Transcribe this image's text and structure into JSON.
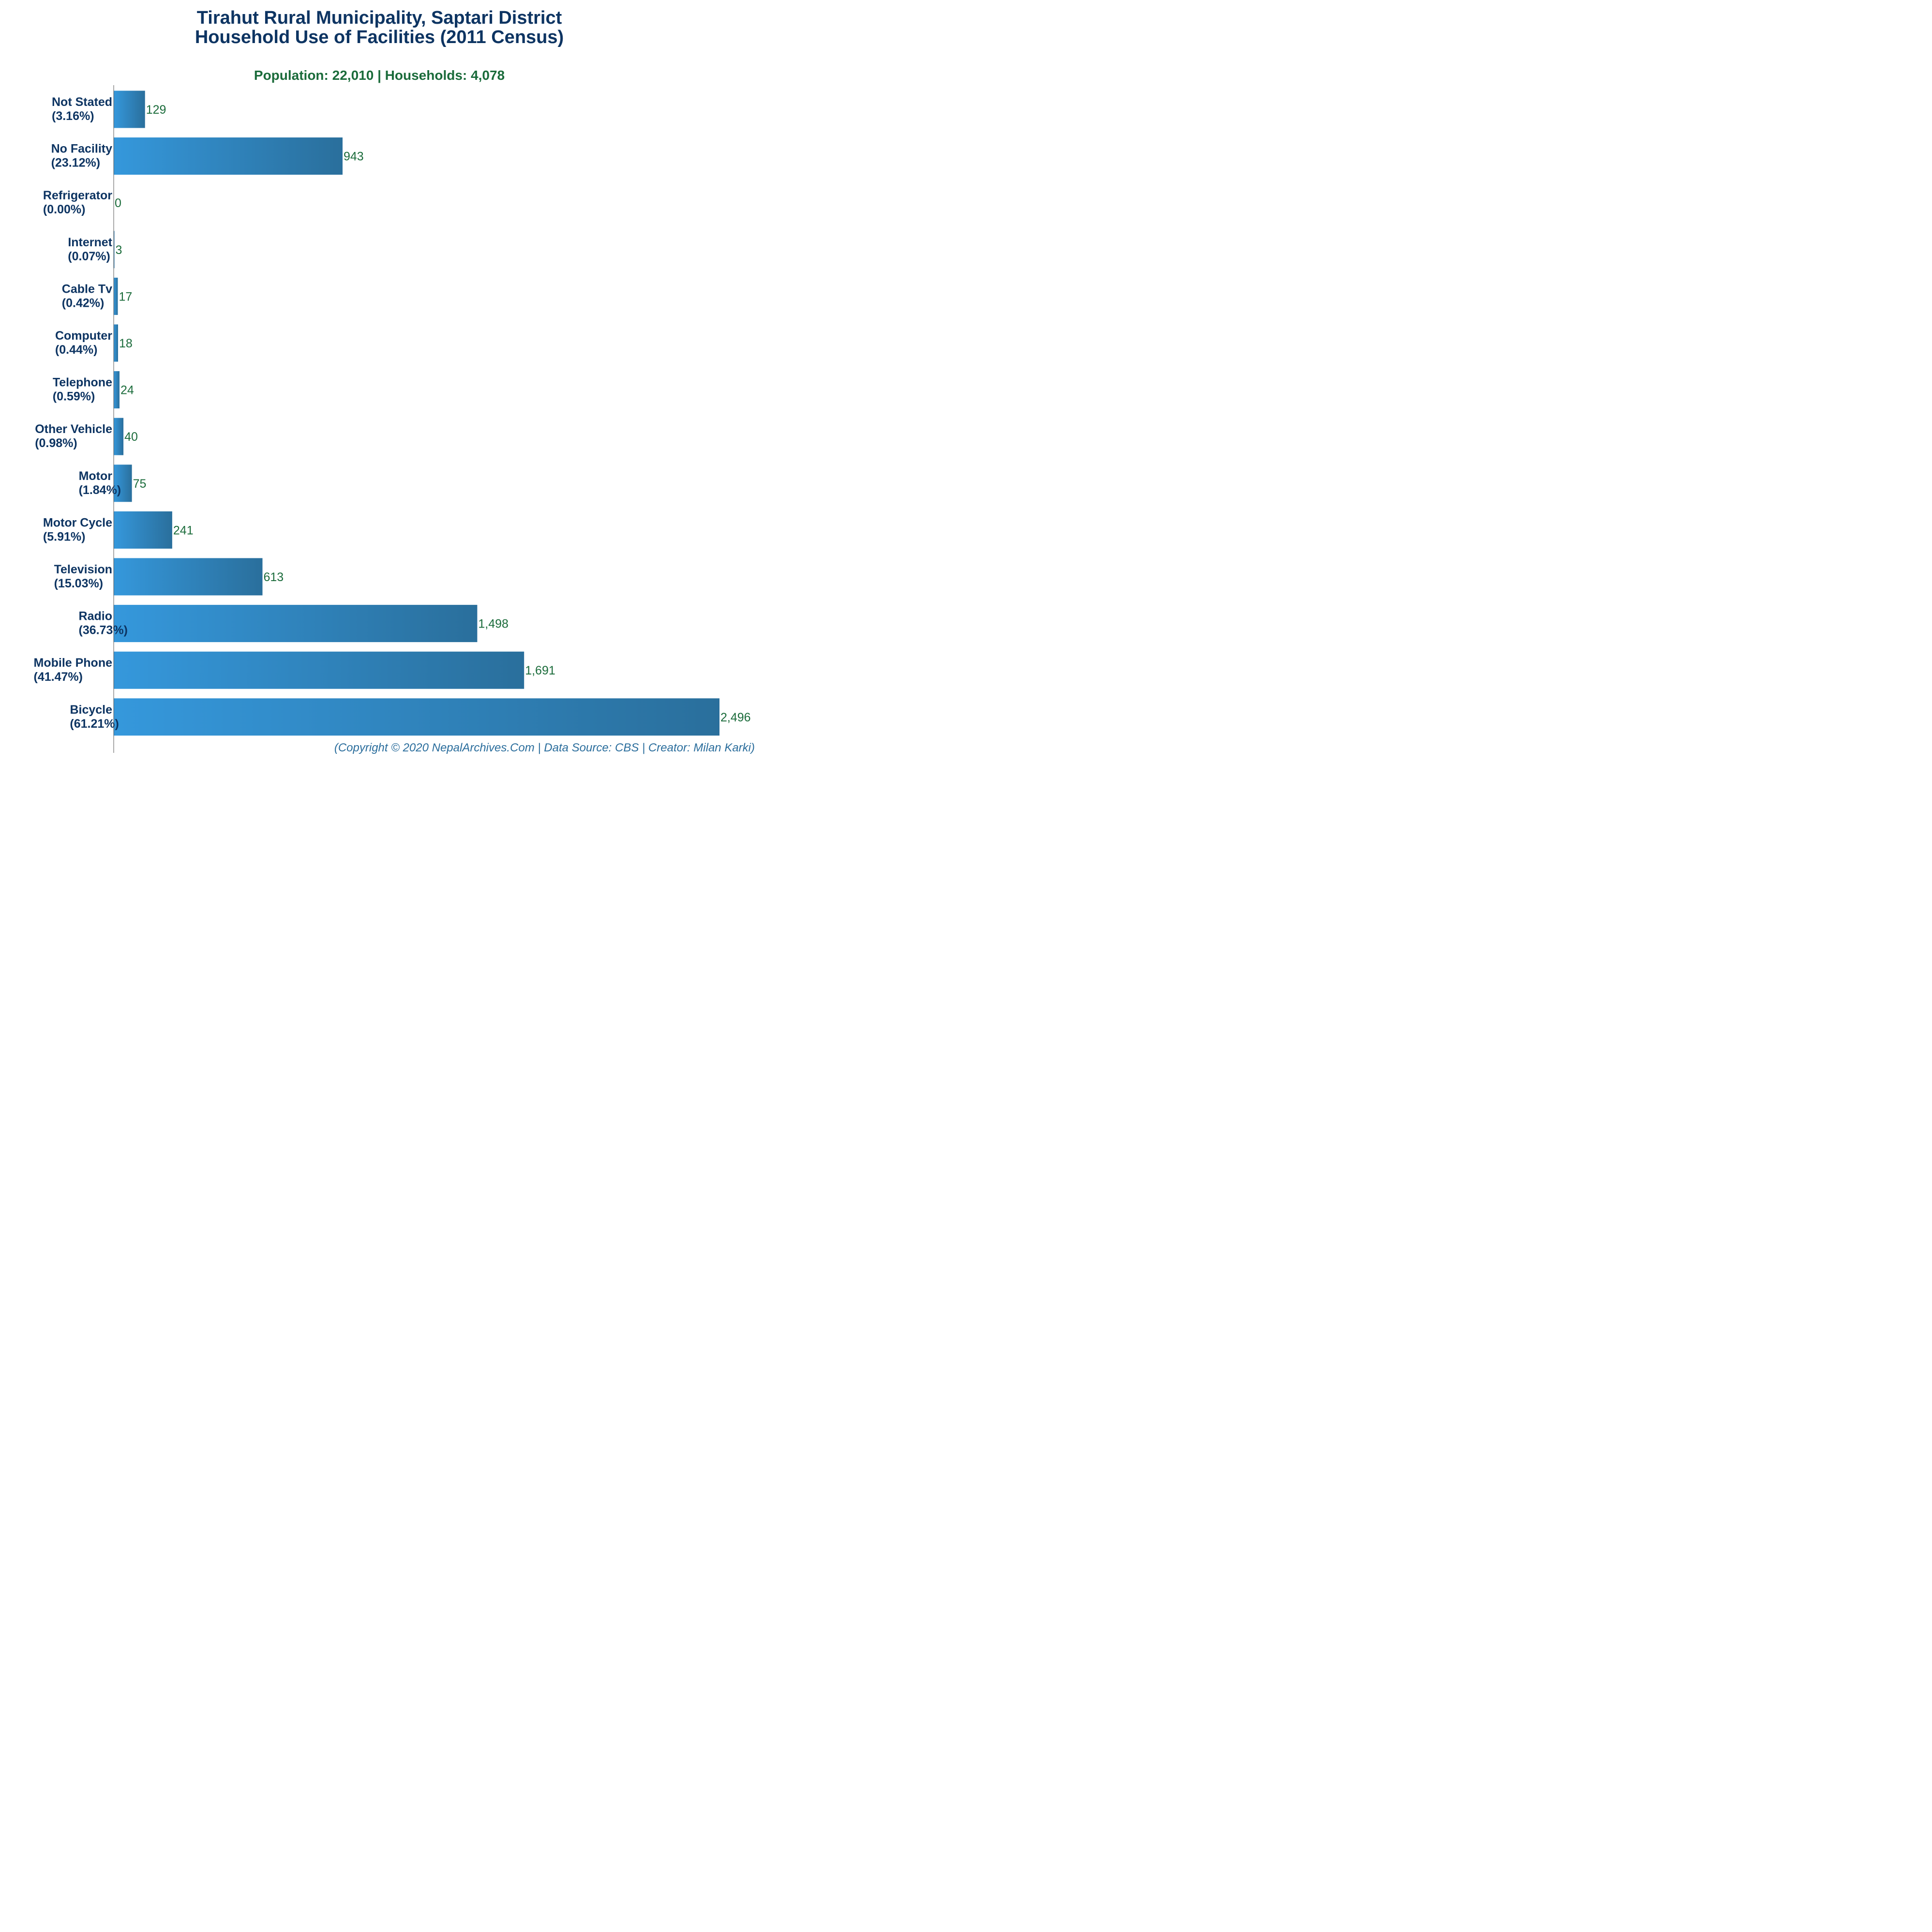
{
  "title": {
    "line1": "Tirahut Rural Municipality, Saptari District",
    "line2": "Household Use of Facilities (2011 Census)"
  },
  "subtitle": "Population: 22,010 | Households: 4,078",
  "footer": "(Copyright © 2020 NepalArchives.Com | Data Source: CBS | Creator: Milan Karki)",
  "colors": {
    "bar_start": "#3598dc",
    "bar_end": "#2a6f9c",
    "title": "#0d3462",
    "value_label": "#1a6b3a",
    "footer": "#2a6d9c",
    "axis": "#555555"
  },
  "chart_data": {
    "type": "bar",
    "orientation": "horizontal",
    "title": "Tirahut Rural Municipality, Saptari District\nHousehold Use of Facilities (2011 Census)",
    "subtitle": "Population: 22,010 | Households: 4,078",
    "xlabel": "",
    "ylabel": "",
    "xlim": [
      0,
      2496
    ],
    "grid": false,
    "legend": "none",
    "categories": [
      "Not Stated",
      "No Facility",
      "Refrigerator",
      "Internet",
      "Cable Tv",
      "Computer",
      "Telephone",
      "Other Vehicle",
      "Motor",
      "Motor Cycle",
      "Television",
      "Radio",
      "Mobile Phone",
      "Bicycle"
    ],
    "percentages": [
      "(3.16%)",
      "(23.12%)",
      "(0.00%)",
      "(0.07%)",
      "(0.42%)",
      "(0.44%)",
      "(0.59%)",
      "(0.98%)",
      "(1.84%)",
      "(5.91%)",
      "(15.03%)",
      "(36.73%)",
      "(41.47%)",
      "(61.21%)"
    ],
    "values": [
      129,
      943,
      0,
      3,
      17,
      18,
      24,
      40,
      75,
      241,
      613,
      1498,
      1691,
      2496
    ],
    "value_labels": [
      "129",
      "943",
      "0",
      "3",
      "17",
      "18",
      "24",
      "40",
      "75",
      "241",
      "613",
      "1,498",
      "1,691",
      "2,496"
    ]
  }
}
